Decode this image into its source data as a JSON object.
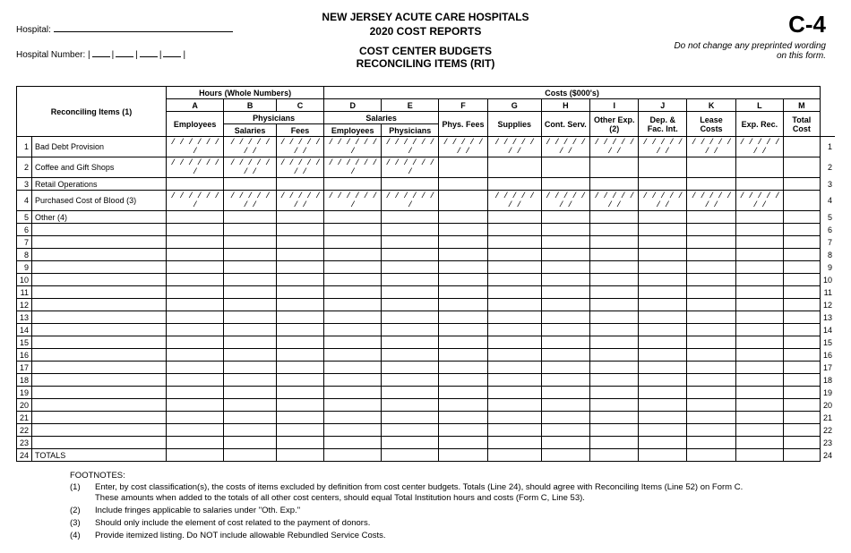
{
  "header": {
    "title_main": "NEW JERSEY ACUTE CARE HOSPITALS",
    "year": "2020",
    "title_sub_suffix": "COST REPORTS",
    "section_line1": "COST CENTER BUDGETS",
    "section_line2": "RECONCILING ITEMS (RIT)",
    "form_code": "C-4",
    "form_note": "Do not change any preprinted wording on this form.",
    "hospital_label": "Hospital:",
    "hospital_number_label": "Hospital Number:"
  },
  "groups": {
    "hours": "Hours (Whole Numbers)",
    "costs": "Costs ($000's)",
    "reconciling": "Reconciling Items (1)"
  },
  "cols": {
    "A": "A",
    "B": "B",
    "C": "C",
    "D": "D",
    "E": "E",
    "F": "F",
    "G": "G",
    "H": "H",
    "I": "I",
    "J": "J",
    "K": "K",
    "L": "L",
    "M": "M"
  },
  "phys_group": "Physicians",
  "sal_group": "Salaries",
  "subheads": {
    "employees": "Employees",
    "salaries": "Salaries",
    "fees": "Fees",
    "physicians": "Physicians",
    "phys_fees": "Phys. Fees",
    "supplies": "Supplies",
    "cont_serv": "Cont. Serv.",
    "other_exp": "Other Exp.(2)",
    "dep_fac": "Dep. & Fac. Int.",
    "lease": "Lease Costs",
    "exp_rec": "Exp. Rec.",
    "total_cost": "Total Cost"
  },
  "row_labels": {
    "1": "Bad Debt Provision",
    "2": "Coffee and Gift Shops",
    "3": "Retail Operations",
    "4": "Purchased Cost of Blood   (3)",
    "5": "Other   (4)",
    "24": "TOTALS"
  },
  "slash": "/ / / / / / /",
  "footnotes": {
    "title": "FOOTNOTES:",
    "1a": "Enter, by cost classification(s), the costs of items excluded by definition from cost center budgets.  Totals (Line 24), should agree with Reconciling Items (Line 52) on Form C.",
    "1b": "These amounts when added to the totals of all other cost centers, should equal Total Institution hours and costs (Form C, Line 53).",
    "2": "Include fringes applicable to salaries under \"Oth. Exp.\"",
    "3": "Should only include the element of cost related to the payment of donors.",
    "4": "Provide itemized listing.  Do NOT include allowable Rebundled Service Costs."
  }
}
